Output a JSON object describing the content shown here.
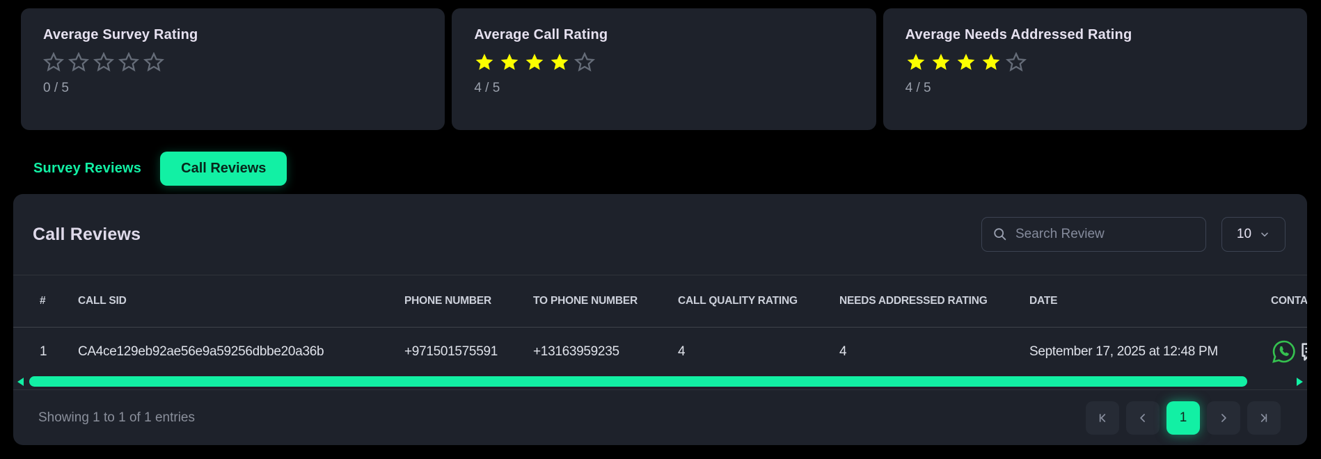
{
  "colors": {
    "accent_green": "#12f0a4",
    "star_yellow": "#fdff00",
    "card_bg": "#1e222b",
    "page_bg": "#000000",
    "whatsapp_green": "#35c14f"
  },
  "cards": [
    {
      "title": "Average Survey Rating",
      "stars_filled": 0,
      "stars_total": 5,
      "score_label": "0 / 5"
    },
    {
      "title": "Average Call Rating",
      "stars_filled": 4,
      "stars_total": 5,
      "score_label": "4 / 5"
    },
    {
      "title": "Average Needs Addressed Rating",
      "stars_filled": 4,
      "stars_total": 5,
      "score_label": "4 / 5"
    }
  ],
  "tabs": [
    {
      "label": "Survey Reviews",
      "active": false
    },
    {
      "label": "Call Reviews",
      "active": true
    }
  ],
  "table": {
    "title": "Call Reviews",
    "search_placeholder": "Search Review",
    "page_size": "10",
    "columns": [
      "#",
      "CALL SID",
      "PHONE NUMBER",
      "TO PHONE NUMBER",
      "CALL QUALITY RATING",
      "NEEDS ADDRESSED RATING",
      "DATE",
      "CONTACT"
    ],
    "rows": [
      {
        "index": "1",
        "call_sid": "CA4ce129eb92ae56e9a59256dbbe20a36b",
        "phone_number": "+971501575591",
        "to_phone_number": "+13163959235",
        "call_quality_rating": "4",
        "needs_addressed_rating": "4",
        "date": "September 17, 2025 at 12:48 PM",
        "contact_icons": [
          "whatsapp-icon",
          "chat-icon"
        ]
      }
    ],
    "footer": {
      "showing_text": "Showing 1 to 1 of 1 entries",
      "current_page": "1"
    }
  }
}
